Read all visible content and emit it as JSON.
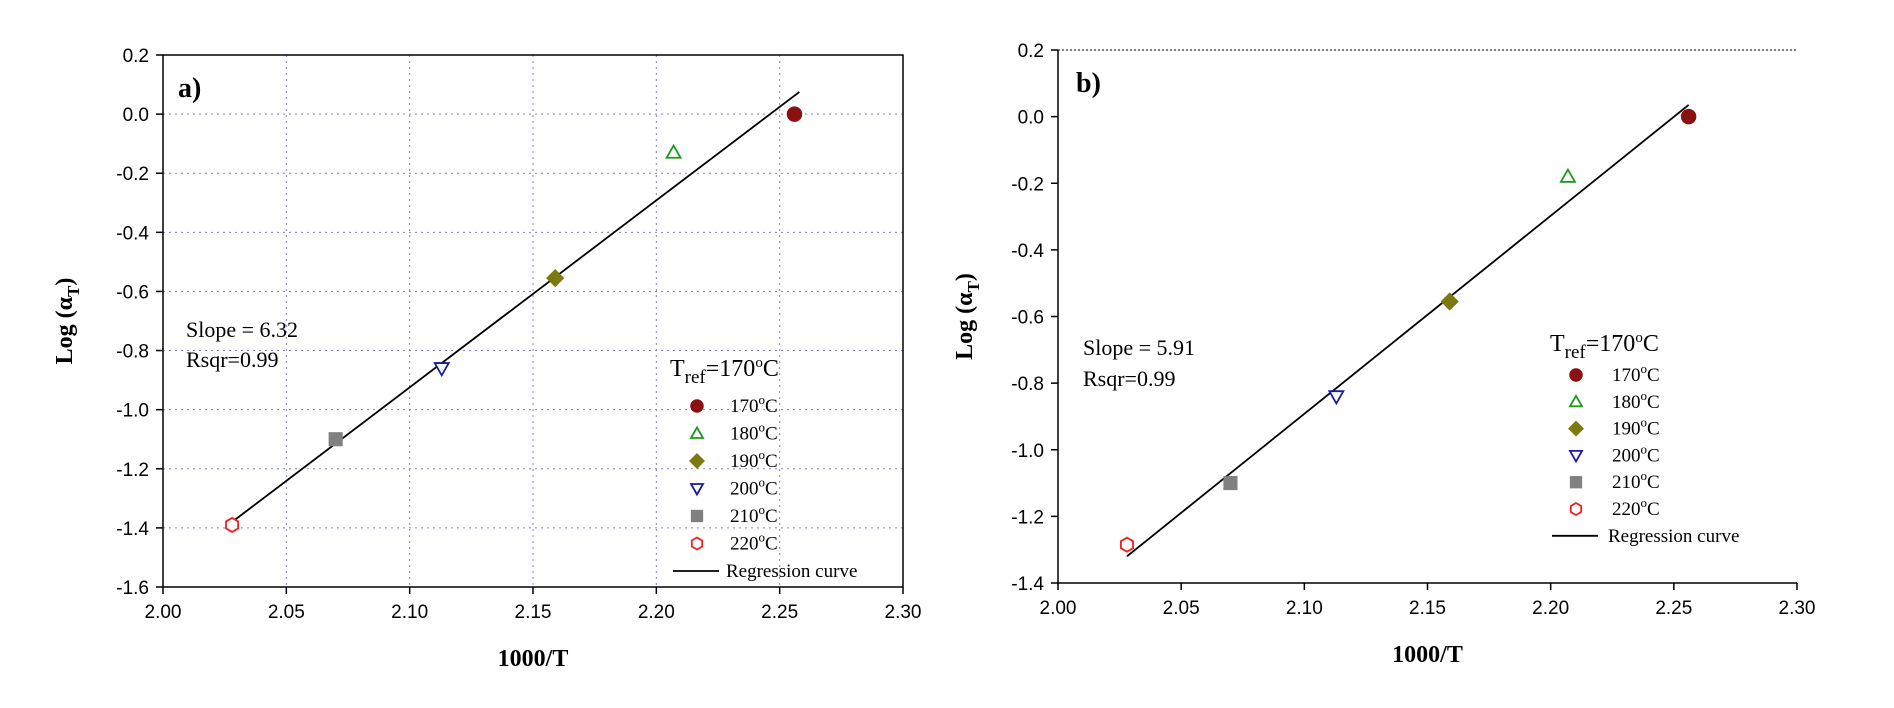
{
  "chart_data": [
    {
      "type": "scatter",
      "panel_label": "a)",
      "xlabel": "1000/T",
      "ylabel_main": "Log (α",
      "ylabel_sub": "T",
      "ylabel_close": ")",
      "xlim": [
        2.0,
        2.3
      ],
      "ylim": [
        -1.6,
        0.2
      ],
      "xticks": [
        "2.00",
        "2.05",
        "2.10",
        "2.15",
        "2.20",
        "2.25",
        "2.30"
      ],
      "yticks": [
        "0.2",
        "0.0",
        "-0.2",
        "-0.4",
        "-0.6",
        "-0.8",
        "-1.0",
        "-1.2",
        "-1.4",
        "-1.6"
      ],
      "grid": true,
      "series": [
        {
          "name": "170°C",
          "temp": "170",
          "marker": "circle",
          "color": "#8b1010",
          "filled": true,
          "x": 2.256,
          "y": 0.0
        },
        {
          "name": "180°C",
          "temp": "180",
          "marker": "triangle-up",
          "color": "#1a9a1a",
          "filled": false,
          "x": 2.207,
          "y": -0.13
        },
        {
          "name": "190°C",
          "temp": "190",
          "marker": "diamond",
          "color": "#7a7a10",
          "filled": true,
          "x": 2.159,
          "y": -0.555
        },
        {
          "name": "200°C",
          "temp": "200",
          "marker": "triangle-down",
          "color": "#1a1aa0",
          "filled": false,
          "x": 2.113,
          "y": -0.86
        },
        {
          "name": "210°C",
          "temp": "210",
          "marker": "square",
          "color": "#808080",
          "filled": true,
          "x": 2.07,
          "y": -1.1
        },
        {
          "name": "220°C",
          "temp": "220",
          "marker": "hexagon",
          "color": "#ee2020",
          "filled": false,
          "x": 2.028,
          "y": -1.39
        }
      ],
      "regression": {
        "name": "Regression curve",
        "x": [
          2.028,
          2.258
        ],
        "y": [
          -1.38,
          0.075
        ]
      },
      "annotation_slope": "Slope = 6.32",
      "annotation_rsqr": "Rsqr=0.99",
      "legend_title_main": "T",
      "legend_title_sub": "ref",
      "legend_title_value": "=170",
      "legend_title_unit": "C",
      "legend_position": "bottom-right"
    },
    {
      "type": "scatter",
      "panel_label": "b)",
      "xlabel": "1000/T",
      "ylabel_main": "Log (α",
      "ylabel_sub": "T",
      "ylabel_close": ")",
      "xlim": [
        2.0,
        2.3
      ],
      "ylim": [
        -1.4,
        0.2
      ],
      "xticks": [
        "2.00",
        "2.05",
        "2.10",
        "2.15",
        "2.20",
        "2.25",
        "2.30"
      ],
      "yticks": [
        "0.2",
        "0.0",
        "-0.2",
        "-0.4",
        "-0.6",
        "-0.8",
        "-1.0",
        "-1.2",
        "-1.4"
      ],
      "grid": false,
      "series": [
        {
          "name": "170°C",
          "temp": "170",
          "marker": "circle",
          "color": "#8b1010",
          "filled": true,
          "x": 2.256,
          "y": 0.0
        },
        {
          "name": "180°C",
          "temp": "180",
          "marker": "triangle-up",
          "color": "#1a9a1a",
          "filled": false,
          "x": 2.207,
          "y": -0.18
        },
        {
          "name": "190°C",
          "temp": "190",
          "marker": "diamond",
          "color": "#7a7a10",
          "filled": true,
          "x": 2.159,
          "y": -0.555
        },
        {
          "name": "200°C",
          "temp": "200",
          "marker": "triangle-down",
          "color": "#1a1aa0",
          "filled": false,
          "x": 2.113,
          "y": -0.84
        },
        {
          "name": "210°C",
          "temp": "210",
          "marker": "square",
          "color": "#808080",
          "filled": true,
          "x": 2.07,
          "y": -1.1
        },
        {
          "name": "220°C",
          "temp": "220",
          "marker": "hexagon",
          "color": "#ee2020",
          "filled": false,
          "x": 2.028,
          "y": -1.285
        }
      ],
      "regression": {
        "name": "Regression curve",
        "x": [
          2.028,
          2.256
        ],
        "y": [
          -1.32,
          0.035
        ]
      },
      "annotation_slope": "Slope = 5.91",
      "annotation_rsqr": "Rsqr=0.99",
      "legend_title_main": "T",
      "legend_title_sub": "ref",
      "legend_title_value": "=170",
      "legend_title_unit": "C",
      "legend_position": "bottom-right"
    }
  ]
}
